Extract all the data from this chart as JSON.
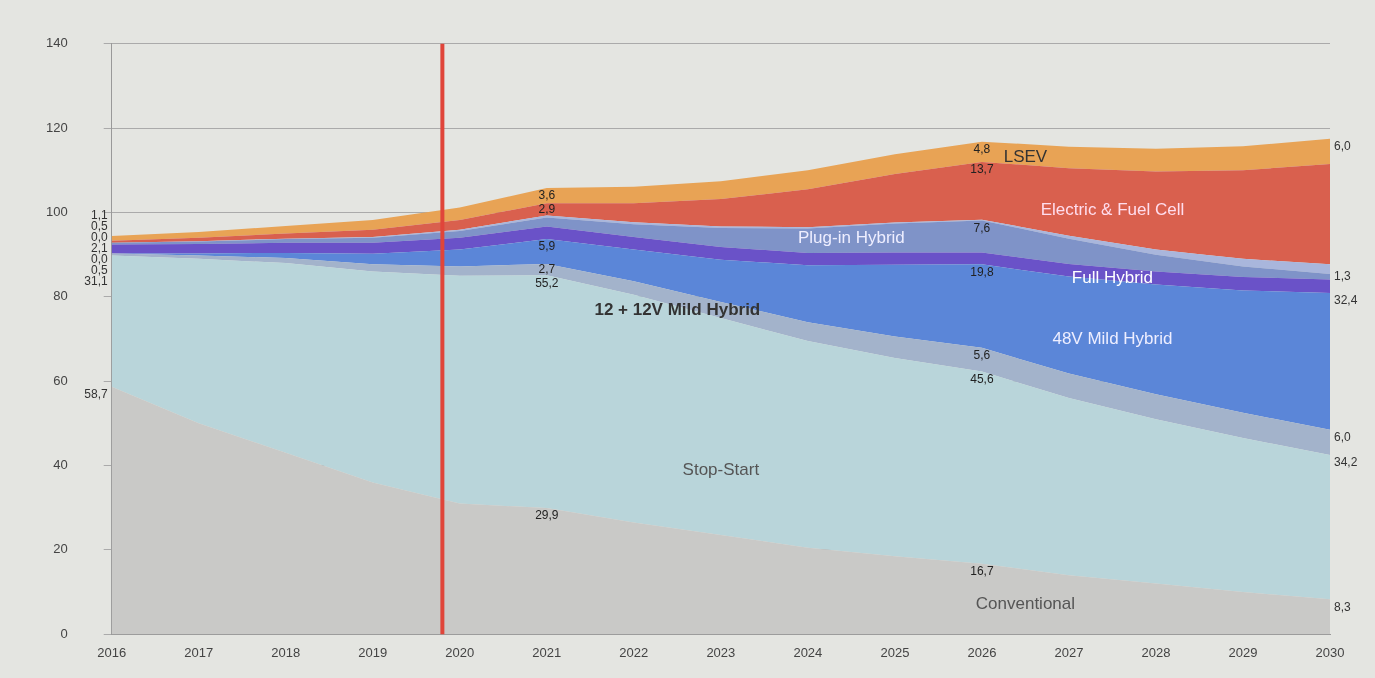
{
  "chart_data": {
    "type": "area",
    "stacked": true,
    "x": [
      2016,
      2017,
      2018,
      2019,
      2020,
      2021,
      2022,
      2023,
      2024,
      2025,
      2026,
      2027,
      2028,
      2029,
      2030
    ],
    "xlim": [
      2016,
      2030
    ],
    "xticks": [
      2016,
      2017,
      2018,
      2019,
      2020,
      2021,
      2022,
      2023,
      2024,
      2025,
      2026,
      2027,
      2028,
      2029,
      2030
    ],
    "ylim": [
      0,
      140
    ],
    "yticks": [
      0,
      20,
      40,
      60,
      80,
      100,
      120,
      140
    ],
    "grid": "y",
    "legend": false,
    "marker": "none",
    "ref_lines": [
      {
        "axis": "x",
        "value": 2019.8,
        "color": "#e0453a"
      }
    ],
    "series": [
      {
        "name": "Conventional",
        "color": "#c9c9c7",
        "values": [
          58.7,
          50,
          43,
          36,
          31,
          29.9,
          26.5,
          23.5,
          20.5,
          18.5,
          16.7,
          14,
          12,
          10,
          8.3
        ],
        "value_labels": [
          "58,7",
          null,
          null,
          null,
          null,
          "29,9",
          null,
          null,
          null,
          null,
          "16,7",
          null,
          null,
          null,
          "8,3"
        ]
      },
      {
        "name": "Stop-Start",
        "color": "#b9d5da",
        "values": [
          31.1,
          39,
          45,
          50,
          54,
          55.2,
          54,
          51.5,
          49,
          47,
          45.6,
          42,
          39,
          36.5,
          34.2
        ],
        "value_labels": [
          "31,1",
          null,
          null,
          null,
          null,
          "55,2",
          null,
          null,
          null,
          null,
          "45,6",
          null,
          null,
          null,
          "34,2"
        ]
      },
      {
        "name": "12 + 12V Mild Hybrid",
        "color": "#a3b3cb",
        "values": [
          0.5,
          0.8,
          1.2,
          1.7,
          2.2,
          2.7,
          3.2,
          3.8,
          4.5,
          5.1,
          5.6,
          5.8,
          5.9,
          6.0,
          6.0
        ],
        "value_labels": [
          "0,5",
          null,
          null,
          null,
          null,
          "2,7",
          null,
          null,
          null,
          null,
          "5,6",
          null,
          null,
          null,
          "6,0"
        ]
      },
      {
        "name": "48V Mild Hybrid",
        "color": "#5b86d8",
        "values": [
          0.0,
          0.5,
          1.2,
          2.5,
          4,
          5.9,
          7.5,
          10,
          13.5,
          17,
          19.8,
          23,
          26,
          29,
          32.4
        ],
        "value_labels": [
          "0,0",
          null,
          null,
          null,
          null,
          "5,9",
          null,
          null,
          null,
          null,
          "19,8",
          null,
          null,
          null,
          "32,4"
        ]
      },
      {
        "name": "Full Hybrid",
        "color": "#6a52c8",
        "values": [
          2.1,
          2.2,
          2.4,
          2.6,
          2.8,
          3.0,
          3.0,
          3.0,
          2.9,
          2.9,
          2.8,
          3.0,
          3.1,
          3.2,
          3.2
        ],
        "value_labels": [
          "2,1",
          null,
          null,
          null,
          null,
          null,
          null,
          null,
          null,
          null,
          null,
          null,
          null,
          null,
          null
        ]
      },
      {
        "name": "Plug-in Hybrid",
        "color": "#7f93c8",
        "values": [
          0.4,
          0.6,
          0.9,
          1.2,
          1.6,
          2.1,
          3,
          4.5,
          5.8,
          6.9,
          7.6,
          6,
          4,
          2.5,
          1.3
        ],
        "value_labels": [
          null,
          null,
          null,
          null,
          null,
          null,
          null,
          null,
          null,
          null,
          "7,6",
          null,
          null,
          null,
          "1,3"
        ]
      },
      {
        "color": "#a9b6dc",
        "values": [
          0.0,
          0.1,
          0.1,
          0.2,
          0.3,
          0.5,
          0.5,
          0.4,
          0.3,
          0.2,
          0.2,
          0.7,
          1.2,
          1.8,
          2.3
        ],
        "value_labels": [
          "0,0",
          null,
          null,
          null,
          null,
          null,
          null,
          null,
          null,
          null,
          null,
          null,
          null,
          null,
          null
        ]
      },
      {
        "name": "Electric & Fuel Cell",
        "color": "#d9604e",
        "values": [
          0.5,
          0.8,
          1.2,
          1.7,
          2.3,
          2.9,
          4.5,
          6.5,
          9,
          11.5,
          13.7,
          16,
          18.5,
          21,
          23.8
        ],
        "value_labels": [
          "0,5",
          null,
          null,
          null,
          null,
          "2,9",
          null,
          null,
          null,
          null,
          "13,7",
          null,
          null,
          null,
          null
        ]
      },
      {
        "name": "LSEV",
        "color": "#e8a355",
        "values": [
          1.1,
          1.4,
          1.8,
          2.3,
          3.0,
          3.6,
          3.9,
          4.2,
          4.5,
          4.7,
          4.8,
          5.1,
          5.4,
          5.7,
          6.0
        ],
        "value_labels": [
          "1,1",
          null,
          null,
          null,
          null,
          "3,6",
          null,
          null,
          null,
          null,
          "4,8",
          null,
          null,
          null,
          "6,0"
        ]
      }
    ]
  }
}
